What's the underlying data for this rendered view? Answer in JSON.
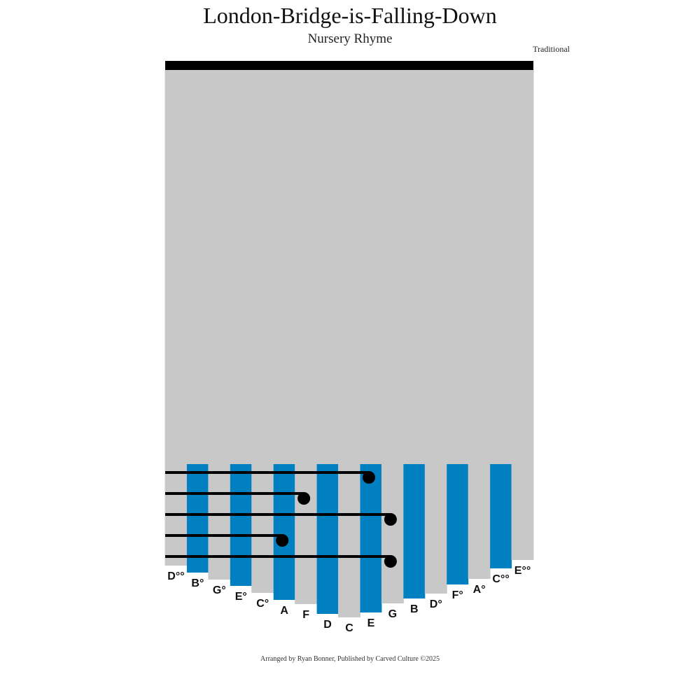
{
  "header": {
    "title": "London-Bridge-is-Falling-Down",
    "subtitle": "Nursery Rhyme",
    "composer": "Traditional"
  },
  "footer": {
    "credit": "Arranged by Ryan Bonner, Published by Carved Culture ©2025"
  },
  "colors": {
    "tine_gray": "#c8c8c8",
    "tine_blue": "#0080c0",
    "note": "#000000"
  },
  "tines": [
    {
      "label": "D°°",
      "color": "gray",
      "len": 708
    },
    {
      "label": "B°",
      "color": "blue",
      "len": 718
    },
    {
      "label": "G°",
      "color": "gray",
      "len": 728
    },
    {
      "label": "E°",
      "color": "blue",
      "len": 737
    },
    {
      "label": "C°",
      "color": "gray",
      "len": 747
    },
    {
      "label": "A",
      "color": "blue",
      "len": 757
    },
    {
      "label": "F",
      "color": "gray",
      "len": 763
    },
    {
      "label": "D",
      "color": "blue",
      "len": 777
    },
    {
      "label": "C",
      "color": "gray",
      "len": 782
    },
    {
      "label": "E",
      "color": "blue",
      "len": 775
    },
    {
      "label": "G",
      "color": "gray",
      "len": 762
    },
    {
      "label": "B",
      "color": "blue",
      "len": 755
    },
    {
      "label": "D°",
      "color": "gray",
      "len": 748
    },
    {
      "label": "F°",
      "color": "blue",
      "len": 735
    },
    {
      "label": "A°",
      "color": "gray",
      "len": 727
    },
    {
      "label": "C°°",
      "color": "blue",
      "len": 712
    },
    {
      "label": "E°°",
      "color": "gray",
      "len": 700
    }
  ],
  "notes": [
    "G",
    "A",
    "G",
    "F",
    "E"
  ]
}
